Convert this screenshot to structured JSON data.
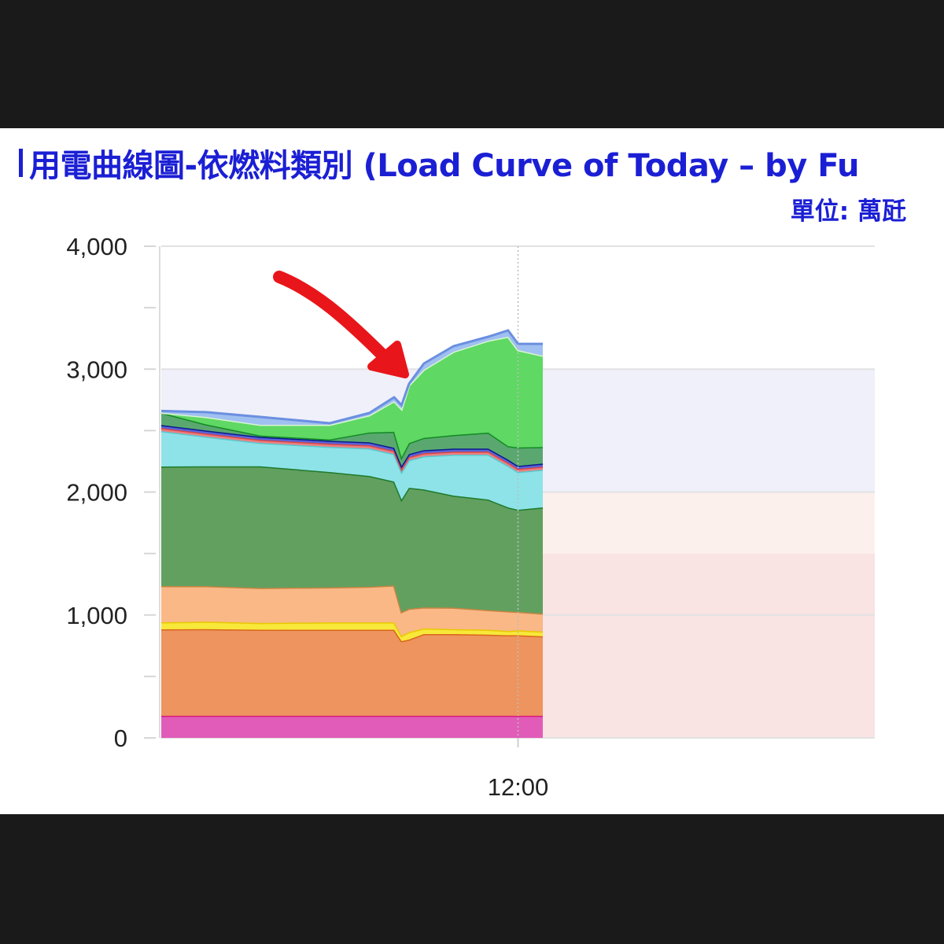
{
  "header": {
    "title": "用電曲線圖-依燃料類別 (Load Curve of Today – by Fu",
    "unit": "單位: 萬瓩"
  },
  "chart_data": {
    "type": "area",
    "stacked": true,
    "title": "用電曲線圖-依燃料類別 (Load Curve of Today – by Fu",
    "ylabel": "單位: 萬瓩",
    "ylim": [
      0,
      4000
    ],
    "xlim": [
      "00:00",
      "24:00"
    ],
    "yticks": [
      "0",
      "1,000",
      "2,000",
      "3,000",
      "4,000"
    ],
    "ytick_values": [
      0,
      1000,
      2000,
      3000,
      4000
    ],
    "xticks": [
      "12:00"
    ],
    "grid": true,
    "background_bands": [
      {
        "from": 2000,
        "to": 3000,
        "color": "#eff0fa"
      },
      {
        "from": 1500,
        "to": 2000,
        "color": "#fcf0ec"
      },
      {
        "from": 0,
        "to": 1500,
        "color": "#f9e3e3"
      }
    ],
    "x": [
      "00:00",
      "01:30",
      "03:20",
      "05:40",
      "07:00",
      "07:50",
      "08:05",
      "08:20",
      "08:50",
      "09:50",
      "11:00",
      "11:40",
      "12:00",
      "12:50"
    ],
    "series": [
      {
        "color": "#e05cb8",
        "line": "#d81b7a",
        "values": [
          180,
          180,
          180,
          180,
          180,
          180,
          180,
          180,
          180,
          180,
          180,
          180,
          180,
          180
        ]
      },
      {
        "color": "#ee945e",
        "line": "#d9661c",
        "values": [
          703,
          705,
          700,
          700,
          700,
          700,
          607,
          620,
          665,
          665,
          660,
          655,
          655,
          646
        ]
      },
      {
        "color": "#f7e83a",
        "line": "#e8c800",
        "values": [
          57,
          60,
          55,
          60,
          60,
          60,
          43,
          60,
          45,
          40,
          40,
          35,
          40,
          39
        ]
      },
      {
        "color": "#f9b886",
        "line": "#c98540",
        "values": [
          295,
          290,
          285,
          285,
          290,
          300,
          194,
          190,
          172,
          175,
          160,
          160,
          150,
          146
        ]
      },
      {
        "color": "#62a060",
        "line": "#1f7a2a",
        "values": [
          973,
          975,
          990,
          938,
          901,
          846,
          915,
          985,
          960,
          911,
          899,
          845,
          831,
          864
        ]
      },
      {
        "color": "#8ee3e8",
        "line": "#5ac8d0",
        "values": [
          288,
          241,
          190,
          205,
          224,
          224,
          224,
          224,
          269,
          333,
          365,
          339,
          307,
          307
        ]
      },
      {
        "color": "#ec8080",
        "line": "#d94848",
        "values": [
          25,
          25,
          25,
          25,
          25,
          25,
          25,
          25,
          25,
          25,
          25,
          25,
          25,
          25
        ]
      },
      {
        "color": "#5a62d8",
        "line": "#0a1a8c",
        "values": [
          25,
          25,
          25,
          25,
          25,
          25,
          25,
          25,
          25,
          25,
          25,
          25,
          25,
          25
        ]
      },
      {
        "color": "#5aa870",
        "line": "#138a25",
        "values": [
          100,
          50,
          10,
          10,
          80,
          130,
          70,
          90,
          100,
          110,
          130,
          110,
          150,
          135
        ]
      },
      {
        "color": "#5fd864",
        "line": "#d8f5d0",
        "values": [
          0,
          60,
          87,
          119,
          139,
          249,
          392,
          468,
          554,
          678,
          748,
          890,
          792,
          743
        ]
      },
      {
        "color": "#9fc0f0",
        "line": "#6b8fe0",
        "values": [
          14,
          39,
          64,
          13,
          19,
          32,
          32,
          13,
          51,
          45,
          32,
          51,
          51,
          96
        ]
      }
    ],
    "annotation": {
      "type": "arrow",
      "color": "#e8161a"
    }
  }
}
